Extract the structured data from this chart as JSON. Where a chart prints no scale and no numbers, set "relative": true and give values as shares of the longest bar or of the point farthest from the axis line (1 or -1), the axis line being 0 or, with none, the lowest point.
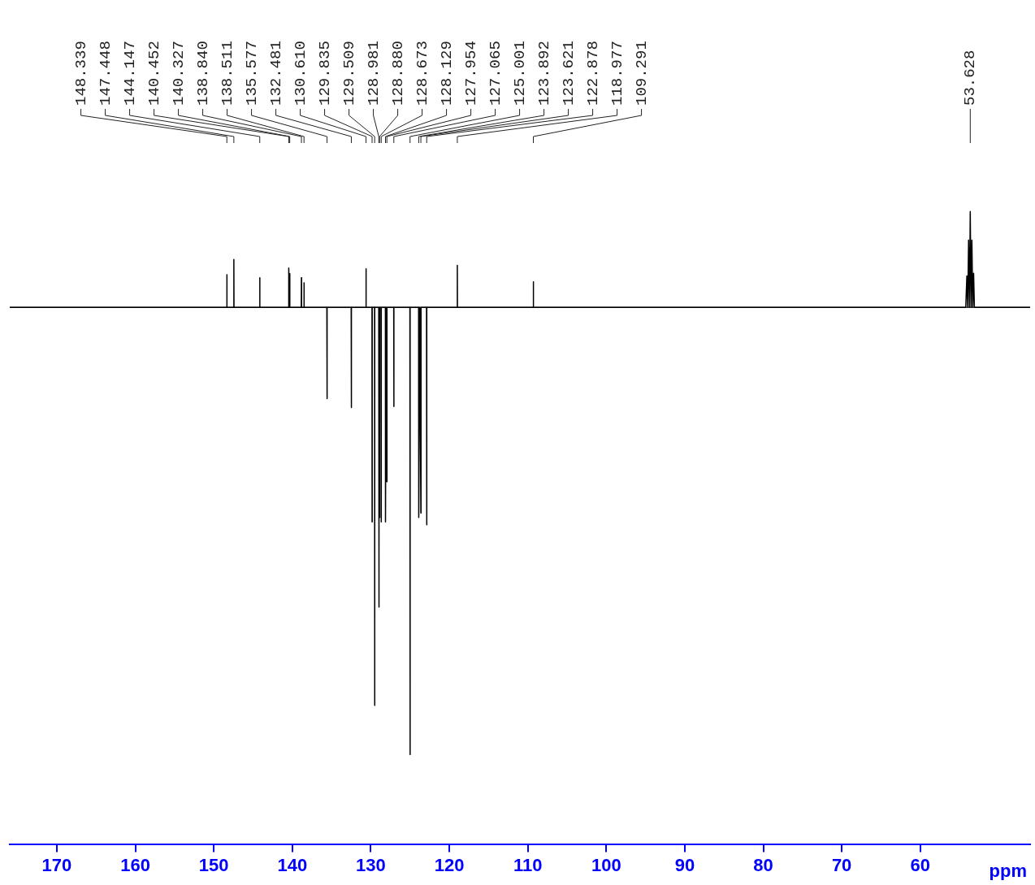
{
  "chart_data": {
    "type": "line",
    "xlabel": "ppm",
    "relative": true,
    "color": "#000000",
    "xlim": [
      176,
      46
    ],
    "xticks": [
      170,
      160,
      150,
      140,
      130,
      120,
      110,
      100,
      90,
      80,
      70,
      60
    ],
    "x": [
      176,
      148.36,
      148.339,
      148.32,
      147.47,
      147.448,
      147.43,
      144.17,
      144.147,
      144.13,
      140.47,
      140.452,
      140.39,
      140.327,
      140.31,
      138.86,
      138.84,
      138.82,
      138.53,
      138.511,
      138.49,
      135.6,
      135.577,
      135.56,
      132.5,
      132.481,
      132.46,
      130.63,
      130.61,
      130.59,
      129.85,
      129.835,
      129.82,
      129.52,
      129.509,
      129.49,
      128.99,
      128.981,
      128.93,
      128.88,
      128.86,
      128.69,
      128.673,
      128.66,
      128.14,
      128.129,
      128.04,
      127.954,
      127.94,
      127.08,
      127.065,
      127.05,
      125.02,
      125.001,
      124.98,
      123.91,
      123.892,
      123.76,
      123.621,
      123.6,
      122.9,
      122.878,
      122.86,
      118.99,
      118.977,
      118.96,
      109.31,
      109.291,
      109.27,
      54.2,
      54.06,
      53.95,
      53.84,
      53.73,
      53.628,
      53.52,
      53.42,
      53.31,
      53.2,
      53.1,
      46
    ],
    "values": [
      0,
      0,
      0.073,
      0,
      0,
      0.107,
      0,
      0,
      0.066,
      0,
      0,
      0.088,
      0,
      0.075,
      0,
      0,
      0.066,
      0,
      0,
      0.055,
      0,
      0,
      -0.204,
      0,
      0,
      -0.224,
      0,
      0,
      0.086,
      0,
      0,
      -0.48,
      0,
      0,
      -0.89,
      0,
      0,
      -0.67,
      0,
      -0.47,
      0,
      0,
      -0.48,
      0,
      0,
      -0.48,
      0,
      -0.39,
      0,
      0,
      -0.222,
      0,
      0,
      -1,
      0,
      0,
      -0.47,
      0,
      -0.46,
      0,
      0,
      -0.486,
      0,
      0,
      0.094,
      0,
      0,
      0.057,
      0,
      0,
      0.07,
      0,
      0.15,
      0,
      0.214,
      0,
      0.15,
      0,
      0.076,
      0,
      0
    ],
    "annotations": [
      {
        "text": "148.339",
        "x": 148.339
      },
      {
        "text": "147.448",
        "x": 147.448
      },
      {
        "text": "144.147",
        "x": 144.147
      },
      {
        "text": "140.452",
        "x": 140.452
      },
      {
        "text": "140.327",
        "x": 140.327
      },
      {
        "text": "138.840",
        "x": 138.84
      },
      {
        "text": "138.511",
        "x": 138.511
      },
      {
        "text": "135.577",
        "x": 135.577
      },
      {
        "text": "132.481",
        "x": 132.481
      },
      {
        "text": "130.610",
        "x": 130.61
      },
      {
        "text": "129.835",
        "x": 129.835
      },
      {
        "text": "129.509",
        "x": 129.509
      },
      {
        "text": "128.981",
        "x": 128.981
      },
      {
        "text": "128.880",
        "x": 128.88
      },
      {
        "text": "128.673",
        "x": 128.673
      },
      {
        "text": "128.129",
        "x": 128.129
      },
      {
        "text": "127.954",
        "x": 127.954
      },
      {
        "text": "127.065",
        "x": 127.065
      },
      {
        "text": "125.001",
        "x": 125.001
      },
      {
        "text": "123.892",
        "x": 123.892
      },
      {
        "text": "123.621",
        "x": 123.621
      },
      {
        "text": "122.878",
        "x": 122.878
      },
      {
        "text": "118.977",
        "x": 118.977
      },
      {
        "text": "109.291",
        "x": 109.291
      },
      {
        "text": "53.628",
        "x": 53.628
      }
    ]
  }
}
